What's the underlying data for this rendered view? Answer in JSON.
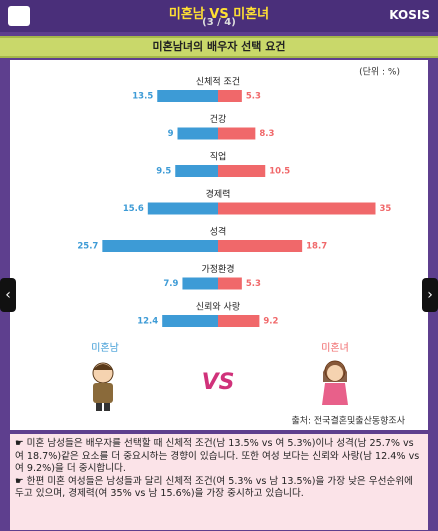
{
  "header": {
    "title": "미혼남 VS 미혼녀",
    "page": "(3 / 4)",
    "logo": "KOSIS"
  },
  "chart_data": {
    "type": "bar",
    "title": "미혼남녀의 배우자 선택 요건",
    "unit": "(단위 : %)",
    "categories": [
      "신체적 조건",
      "건강",
      "직업",
      "경제력",
      "성격",
      "가정환경",
      "신뢰와 사랑"
    ],
    "series": [
      {
        "name": "미혼남",
        "color": "#3d9bd6",
        "values": [
          13.5,
          9,
          9.5,
          15.6,
          25.7,
          7.9,
          12.4
        ]
      },
      {
        "name": "미혼녀",
        "color": "#f0686a",
        "values": [
          5.3,
          8.3,
          10.5,
          35,
          18.7,
          5.3,
          9.2
        ]
      }
    ],
    "vs": "VS",
    "source": "출처: 전국결혼및출산동향조사"
  },
  "description": [
    "☛ 미혼 남성들은 배우자를 선택할 때 신체적 조건(남 13.5% vs 여 5.3%)이나 성격(남 25.7% vs 여 18.7%)같은 요소를 더 중요시하는 경향이 있습니다. 또한 여성 보다는 신뢰와 사랑(남 12.4% vs 여 9.2%)을 더 중시합니다.",
    "☛ 한편 미혼 여성들은 남성들과 달리 신체적 조건(여 5.3% vs 남 13.5%)을 가장 낮은 우선순위에 두고 있으며, 경제력(여 35% vs 남 15.6%)을 가장 중시하고 있습니다."
  ]
}
